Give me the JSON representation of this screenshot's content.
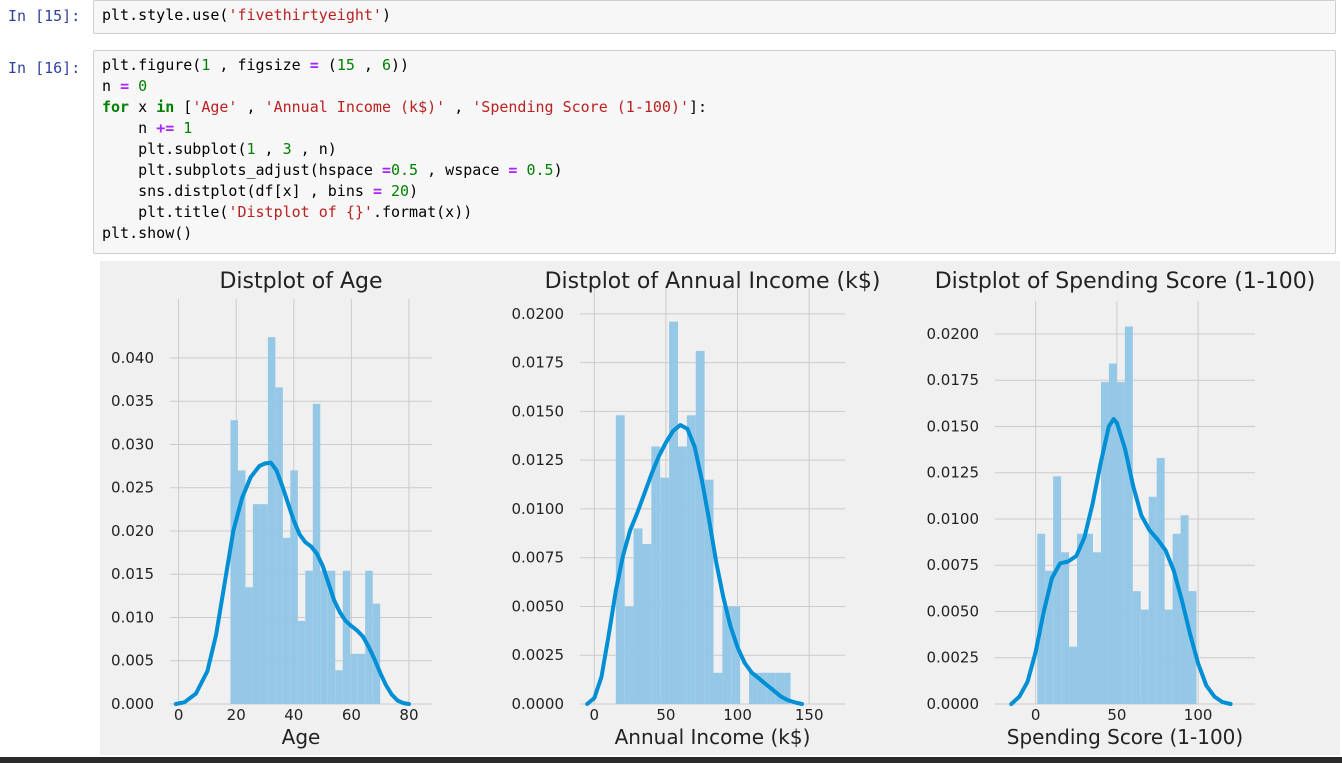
{
  "cells": [
    {
      "prompt": "In [15]:",
      "code": [
        [
          [
            "p",
            "plt.style.use("
          ],
          [
            "s",
            "'fivethirtyeight'"
          ],
          [
            "p",
            ")"
          ]
        ]
      ]
    },
    {
      "prompt": "In [16]:",
      "code": [
        [
          [
            "p",
            "plt.figure("
          ],
          [
            "n",
            "1"
          ],
          [
            "p",
            " , figsize "
          ],
          [
            "o",
            "="
          ],
          [
            "p",
            " ("
          ],
          [
            "n",
            "15"
          ],
          [
            "p",
            " , "
          ],
          [
            "n",
            "6"
          ],
          [
            "p",
            "))"
          ]
        ],
        [
          [
            "p",
            "n "
          ],
          [
            "o",
            "="
          ],
          [
            "p",
            " "
          ],
          [
            "n",
            "0"
          ]
        ],
        [
          [
            "k",
            "for"
          ],
          [
            "p",
            " x "
          ],
          [
            "k",
            "in"
          ],
          [
            "p",
            " ["
          ],
          [
            "s",
            "'Age'"
          ],
          [
            "p",
            " , "
          ],
          [
            "s",
            "'Annual Income (k$)'"
          ],
          [
            "p",
            " , "
          ],
          [
            "s",
            "'Spending Score (1-100)'"
          ],
          [
            "p",
            "]:"
          ]
        ],
        [
          [
            "p",
            "    n "
          ],
          [
            "o",
            "+="
          ],
          [
            "p",
            " "
          ],
          [
            "n",
            "1"
          ]
        ],
        [
          [
            "p",
            "    plt.subplot("
          ],
          [
            "n",
            "1"
          ],
          [
            "p",
            " , "
          ],
          [
            "n",
            "3"
          ],
          [
            "p",
            " , n)"
          ]
        ],
        [
          [
            "p",
            "    plt.subplots_adjust(hspace "
          ],
          [
            "o",
            "="
          ],
          [
            "n",
            "0.5"
          ],
          [
            "p",
            " , wspace "
          ],
          [
            "o",
            "="
          ],
          [
            "p",
            " "
          ],
          [
            "n",
            "0.5"
          ],
          [
            "p",
            ")"
          ]
        ],
        [
          [
            "p",
            "    sns.distplot(df[x] , bins "
          ],
          [
            "o",
            "="
          ],
          [
            "p",
            " "
          ],
          [
            "n",
            "20"
          ],
          [
            "p",
            ")"
          ]
        ],
        [
          [
            "p",
            "    plt.title("
          ],
          [
            "s",
            "'Distplot of {}'"
          ],
          [
            "p",
            ".format(x))"
          ]
        ],
        [
          [
            "p",
            "plt.show()"
          ]
        ]
      ]
    }
  ],
  "colors": {
    "plot_bg": "#f0f0f0",
    "grid": "#cbcbcb",
    "bar": "#95c8e6",
    "kde": "#008fd5",
    "text": "#222222"
  },
  "chart_data": [
    {
      "type": "bar",
      "title": "Distplot of Age",
      "xlabel": "Age",
      "ylabel": "",
      "xticks": [
        0,
        20,
        40,
        60,
        80
      ],
      "yticks": [
        0.0,
        0.005,
        0.01,
        0.015,
        0.02,
        0.025,
        0.03,
        0.035,
        0.04
      ],
      "ytick_labels": [
        "0.000",
        "0.005",
        "0.010",
        "0.015",
        "0.020",
        "0.025",
        "0.030",
        "0.035",
        "0.040"
      ],
      "xlim": [
        -3,
        88
      ],
      "ylim": [
        0,
        0.0445
      ],
      "bin_edges": [
        18,
        20.6,
        23.2,
        25.8,
        28.4,
        31.0,
        33.6,
        36.2,
        38.8,
        41.4,
        44.0,
        46.6,
        49.2,
        51.8,
        54.4,
        57.0,
        59.6,
        62.2,
        64.8,
        67.4,
        70
      ],
      "bar_values": [
        0.0328,
        0.027,
        0.0135,
        0.0231,
        0.0231,
        0.0424,
        0.0366,
        0.0192,
        0.027,
        0.0096,
        0.0154,
        0.0347,
        0.0154,
        0.0154,
        0.0039,
        0.0154,
        0.0058,
        0.0058,
        0.0154,
        0.0116
      ],
      "kde": [
        [
          -1,
          0.0
        ],
        [
          2,
          0.0002
        ],
        [
          6,
          0.0012
        ],
        [
          10,
          0.0038
        ],
        [
          13,
          0.008
        ],
        [
          16,
          0.014
        ],
        [
          19,
          0.02
        ],
        [
          22,
          0.0238
        ],
        [
          25,
          0.0262
        ],
        [
          28,
          0.0275
        ],
        [
          30,
          0.0278
        ],
        [
          32,
          0.0279
        ],
        [
          34,
          0.027
        ],
        [
          36,
          0.0252
        ],
        [
          38,
          0.0232
        ],
        [
          40,
          0.0212
        ],
        [
          42,
          0.0196
        ],
        [
          44,
          0.0187
        ],
        [
          46,
          0.0182
        ],
        [
          48,
          0.0174
        ],
        [
          50,
          0.016
        ],
        [
          52,
          0.014
        ],
        [
          54,
          0.012
        ],
        [
          56,
          0.0106
        ],
        [
          58,
          0.0096
        ],
        [
          60,
          0.009
        ],
        [
          62,
          0.0085
        ],
        [
          64,
          0.0078
        ],
        [
          66,
          0.0066
        ],
        [
          68,
          0.0052
        ],
        [
          70,
          0.0036
        ],
        [
          72,
          0.0022
        ],
        [
          74,
          0.0011
        ],
        [
          76,
          0.0004
        ],
        [
          78,
          0.0001
        ],
        [
          80,
          0.0
        ]
      ]
    },
    {
      "type": "bar",
      "title": "Distplot of Annual Income (k$)",
      "xlabel": "Annual Income (k$)",
      "ylabel": "",
      "xticks": [
        0,
        50,
        100,
        150
      ],
      "yticks": [
        0.0,
        0.0025,
        0.005,
        0.0075,
        0.01,
        0.0125,
        0.015,
        0.0175,
        0.02
      ],
      "ytick_labels": [
        "0.0000",
        "0.0025",
        "0.0050",
        "0.0075",
        "0.0100",
        "0.0125",
        "0.0150",
        "0.0175",
        "0.0200"
      ],
      "xlim": [
        -10,
        175
      ],
      "ylim": [
        0,
        0.0203
      ],
      "bin_edges": [
        15,
        21.2,
        27.4,
        33.6,
        39.8,
        46.0,
        52.2,
        58.4,
        64.6,
        70.8,
        77.0,
        83.2,
        89.4,
        95.6,
        101.8,
        108.0,
        114.2,
        120.4,
        126.6,
        132.8,
        137
      ],
      "bar_values": [
        0.0148,
        0.005,
        0.009,
        0.0082,
        0.0132,
        0.0116,
        0.0196,
        0.0132,
        0.0148,
        0.0181,
        0.0115,
        0.0016,
        0.005,
        0.005,
        0.0,
        0.0016,
        0.0016,
        0.0016,
        0.0016,
        0.0016
      ],
      "kde": [
        [
          -5,
          0.0
        ],
        [
          0,
          0.0003
        ],
        [
          5,
          0.0014
        ],
        [
          10,
          0.0035
        ],
        [
          15,
          0.0058
        ],
        [
          20,
          0.0076
        ],
        [
          25,
          0.0089
        ],
        [
          30,
          0.0098
        ],
        [
          35,
          0.0108
        ],
        [
          40,
          0.0118
        ],
        [
          45,
          0.0127
        ],
        [
          50,
          0.0134
        ],
        [
          55,
          0.014
        ],
        [
          60,
          0.0143
        ],
        [
          65,
          0.0141
        ],
        [
          70,
          0.0132
        ],
        [
          75,
          0.0115
        ],
        [
          80,
          0.0095
        ],
        [
          85,
          0.0073
        ],
        [
          90,
          0.0055
        ],
        [
          95,
          0.004
        ],
        [
          100,
          0.0029
        ],
        [
          105,
          0.0021
        ],
        [
          110,
          0.0016
        ],
        [
          115,
          0.0013
        ],
        [
          120,
          0.001
        ],
        [
          125,
          0.0007
        ],
        [
          130,
          0.0004
        ],
        [
          135,
          0.0002
        ],
        [
          140,
          8e-05
        ],
        [
          145,
          0.0
        ]
      ]
    },
    {
      "type": "bar",
      "title": "Distplot of Spending Score (1-100)",
      "xlabel": "Spending Score (1-100)",
      "ylabel": "",
      "xticks": [
        0,
        50,
        100
      ],
      "yticks": [
        0.0,
        0.0025,
        0.005,
        0.0075,
        0.01,
        0.0125,
        0.015,
        0.0175,
        0.02
      ],
      "ytick_labels": [
        "0.0000",
        "0.0025",
        "0.0050",
        "0.0075",
        "0.0100",
        "0.0125",
        "0.0150",
        "0.0175",
        "0.0200"
      ],
      "xlim": [
        -25,
        135
      ],
      "ylim": [
        0,
        0.0207
      ],
      "bin_edges": [
        1,
        5.9,
        10.8,
        15.7,
        20.6,
        25.5,
        30.4,
        35.3,
        40.2,
        45.1,
        50.0,
        54.9,
        59.8,
        64.7,
        69.6,
        74.5,
        79.4,
        84.3,
        89.2,
        94.1,
        99
      ],
      "bar_values": [
        0.0092,
        0.0072,
        0.0123,
        0.0082,
        0.0031,
        0.0092,
        0.0092,
        0.0082,
        0.0174,
        0.0184,
        0.0174,
        0.0204,
        0.0061,
        0.0051,
        0.0112,
        0.0133,
        0.0051,
        0.0092,
        0.0102,
        0.0061
      ],
      "kde": [
        [
          -15,
          0.0
        ],
        [
          -10,
          0.0004
        ],
        [
          -5,
          0.0012
        ],
        [
          0,
          0.0028
        ],
        [
          5,
          0.005
        ],
        [
          10,
          0.0068
        ],
        [
          15,
          0.0076
        ],
        [
          20,
          0.0077
        ],
        [
          25,
          0.008
        ],
        [
          30,
          0.009
        ],
        [
          35,
          0.0108
        ],
        [
          40,
          0.013
        ],
        [
          45,
          0.015
        ],
        [
          48,
          0.0154
        ],
        [
          50,
          0.0152
        ],
        [
          55,
          0.0138
        ],
        [
          60,
          0.0118
        ],
        [
          65,
          0.0102
        ],
        [
          70,
          0.0094
        ],
        [
          75,
          0.0089
        ],
        [
          80,
          0.0083
        ],
        [
          85,
          0.0072
        ],
        [
          90,
          0.0056
        ],
        [
          95,
          0.0038
        ],
        [
          100,
          0.0022
        ],
        [
          105,
          0.001
        ],
        [
          110,
          0.0004
        ],
        [
          115,
          0.0001
        ],
        [
          120,
          0.0
        ]
      ]
    }
  ]
}
